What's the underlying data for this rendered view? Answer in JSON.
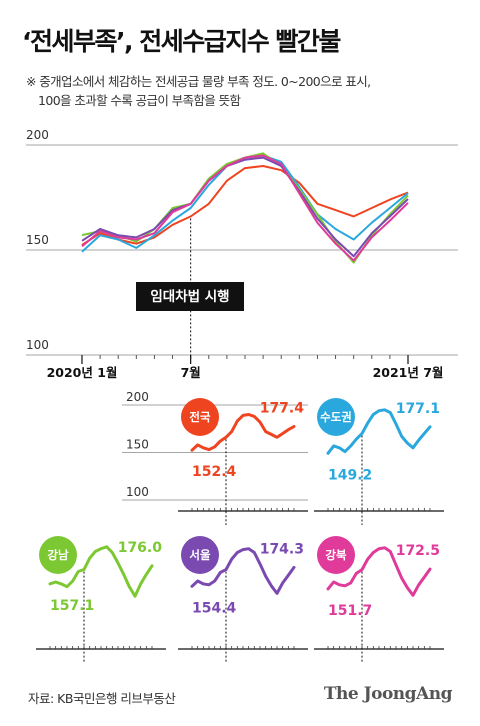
{
  "title": "‘전세부족’, 전세수급지수 빨간불",
  "subtitle": {
    "line1": "※ 중개업소에서 체감하는 전세공급 물량 부족 정도. 0~200으로 표시,",
    "line2": "100을 초과할 수록 공급이 부족함을 뜻함"
  },
  "source": "자료: KB국민은행 리브부동산",
  "brand": "The JoongAng",
  "annotation": "임대차법 시행",
  "chart_data": [
    {
      "type": "line",
      "id": "main",
      "x_labels": [
        "2020년 1월",
        "7월",
        "2021년 7월"
      ],
      "x_label_index": [
        0,
        6,
        18
      ],
      "y_ticks": [
        200,
        150,
        100
      ],
      "ylim": [
        100,
        200
      ],
      "n_points": 19,
      "series": [
        {
          "name": "전국",
          "color": "#ee4420",
          "values": [
            152.4,
            158,
            155,
            153,
            156,
            162,
            166,
            172,
            183,
            189,
            190,
            188,
            182,
            172,
            169,
            166,
            170,
            174,
            177.4
          ]
        },
        {
          "name": "수도권",
          "color": "#2aa8de",
          "values": [
            149.2,
            157,
            155,
            151,
            157,
            164,
            170,
            181,
            190,
            194,
            195,
            192,
            180,
            167,
            160,
            155,
            163,
            170,
            177.1
          ]
        },
        {
          "name": "강남",
          "color": "#7cc832",
          "values": [
            157.1,
            159,
            157,
            154,
            160,
            170,
            172,
            184,
            191,
            194,
            196,
            190,
            179,
            167,
            154,
            144,
            157,
            167,
            176.0
          ]
        },
        {
          "name": "서울",
          "color": "#7a4ab0",
          "values": [
            154.4,
            160,
            157,
            156,
            160,
            169,
            172,
            183,
            190,
            193,
            194,
            190,
            178,
            165,
            155,
            147,
            158,
            166,
            174.3
          ]
        },
        {
          "name": "강북",
          "color": "#e03a9a",
          "values": [
            151.7,
            159,
            156,
            155,
            158,
            168,
            172,
            183,
            190,
            194,
            195,
            191,
            177,
            163,
            153,
            145,
            156,
            164,
            172.5
          ]
        }
      ]
    },
    {
      "type": "line",
      "id": "small-national",
      "name": "전국",
      "color": "#ee4420",
      "start": "152.4",
      "end": "177.4",
      "y_ticks": [
        200,
        150,
        100
      ]
    },
    {
      "type": "line",
      "id": "small-capital",
      "name": "수도권",
      "color": "#2aa8de",
      "start": "149.2",
      "end": "177.1"
    },
    {
      "type": "line",
      "id": "small-gangnam",
      "name": "강남",
      "color": "#7cc832",
      "start": "157.1",
      "end": "176.0"
    },
    {
      "type": "line",
      "id": "small-seoul",
      "name": "서울",
      "color": "#7a4ab0",
      "start": "154.4",
      "end": "174.3"
    },
    {
      "type": "line",
      "id": "small-gangbuk",
      "name": "강북",
      "color": "#e03a9a",
      "start": "151.7",
      "end": "172.5"
    }
  ]
}
